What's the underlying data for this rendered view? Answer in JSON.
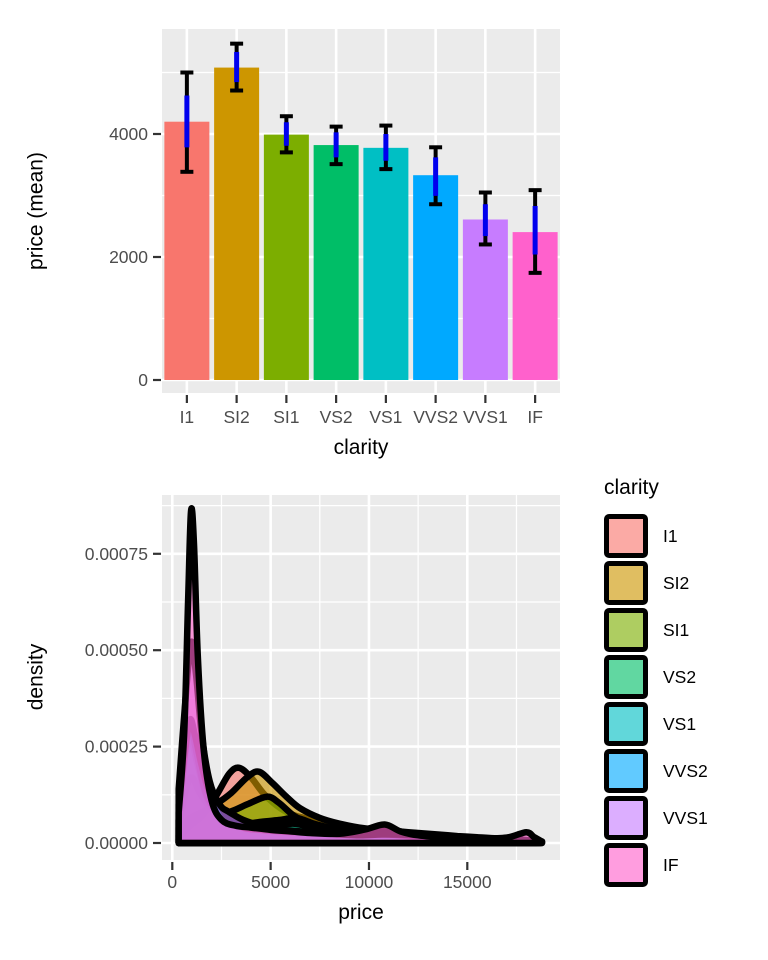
{
  "chart_data": [
    {
      "type": "bar",
      "ylabel": "price (mean)",
      "xlabel": "clarity",
      "categories": [
        "I1",
        "SI2",
        "SI1",
        "VS2",
        "VS1",
        "VVS2",
        "VVS1",
        "IF"
      ],
      "values": [
        4200,
        5080,
        3990,
        3820,
        3775,
        3330,
        2610,
        2405
      ],
      "bar_colors": [
        "#F8766D",
        "#CD9600",
        "#7CAE00",
        "#00BE67",
        "#00BFC4",
        "#00A9FF",
        "#C77CFF",
        "#FF61CC"
      ],
      "errorbars": {
        "outer_color": "#000000",
        "inner_color": "#0000EE",
        "outer": [
          [
            3385,
            5000
          ],
          [
            4707,
            5469
          ],
          [
            3701,
            4289
          ],
          [
            3510,
            4120
          ],
          [
            3429,
            4137
          ],
          [
            2858,
            3784
          ],
          [
            2204,
            3049
          ],
          [
            1742,
            3087
          ]
        ],
        "inner": [
          [
            3783,
            4626
          ],
          [
            4844,
            5334
          ],
          [
            3809,
            4191
          ],
          [
            3620,
            4027
          ],
          [
            3565,
            4000
          ],
          [
            2994,
            3620
          ],
          [
            2340,
            2858
          ],
          [
            2041,
            2830
          ]
        ]
      },
      "y_ticks": {
        "values": [
          0,
          2000,
          4000
        ],
        "labels": [
          "0",
          "2000",
          "4000"
        ]
      },
      "y_minor": [
        1000,
        3000,
        5000
      ],
      "ylim": [
        0,
        5920
      ],
      "panel_bg": "#EBEBEB",
      "grid_color": "#FFFFFF",
      "tick_color": "#333333",
      "tick_label_color": "#4D4D4D"
    },
    {
      "type": "area",
      "ylabel": "density",
      "xlabel": "price",
      "legend_title": "clarity",
      "x_ticks": {
        "values": [
          0,
          5000,
          10000,
          15000
        ],
        "labels": [
          "0",
          "5000",
          "10000",
          "15000"
        ]
      },
      "x_minor": [
        2500,
        7500,
        12500,
        17500
      ],
      "y_ticks": {
        "values": [
          0,
          0.00025,
          0.0005,
          0.00075
        ],
        "labels": [
          "0.00000",
          "0.00025",
          "0.00050",
          "0.00075"
        ]
      },
      "y_minor": [
        0.000125,
        0.000375,
        0.000625,
        0.000875
      ],
      "xlim": [
        -520,
        19720
      ],
      "ylim": [
        0,
        0.000902
      ],
      "panel_bg": "#EBEBEB",
      "grid_color": "#FFFFFF",
      "tick_color": "#333333",
      "tick_label_color": "#4D4D4D",
      "fill_opacity": 0.62,
      "outline_color": "#000000",
      "outline_width": 6.5,
      "series": [
        {
          "name": "I1",
          "color": "#F8766D",
          "points": [
            [
              326,
              1e-05
            ],
            [
              800,
              4e-05
            ],
            [
              1500,
              7e-05
            ],
            [
              2200,
              0.00012
            ],
            [
              2900,
              0.00018
            ],
            [
              3400,
              0.000195
            ],
            [
              4000,
              0.00017
            ],
            [
              4700,
              0.000125
            ],
            [
              5500,
              9e-05
            ],
            [
              6300,
              7e-05
            ],
            [
              7200,
              6e-05
            ],
            [
              8000,
              4.5e-05
            ],
            [
              9000,
              3e-05
            ],
            [
              10000,
              2.5e-05
            ],
            [
              11500,
              2e-05
            ],
            [
              13000,
              1.4e-05
            ],
            [
              14500,
              1e-05
            ],
            [
              16000,
              7e-06
            ],
            [
              17500,
              4e-06
            ],
            [
              18500,
              2e-06
            ]
          ]
        },
        {
          "name": "SI2",
          "color": "#CD9600",
          "points": [
            [
              326,
              2e-05
            ],
            [
              800,
              6e-05
            ],
            [
              1500,
              8e-05
            ],
            [
              2200,
              0.0001
            ],
            [
              3000,
              0.00013
            ],
            [
              3800,
              0.00017
            ],
            [
              4400,
              0.000185
            ],
            [
              5100,
              0.000155
            ],
            [
              5800,
              0.00012
            ],
            [
              6500,
              9e-05
            ],
            [
              7500,
              6.5e-05
            ],
            [
              8500,
              5e-05
            ],
            [
              9500,
              4e-05
            ],
            [
              10500,
              3.4e-05
            ],
            [
              11500,
              3e-05
            ],
            [
              12500,
              2.6e-05
            ],
            [
              13500,
              2.2e-05
            ],
            [
              14500,
              1.8e-05
            ],
            [
              15500,
              1.5e-05
            ],
            [
              16500,
              1.2e-05
            ],
            [
              17500,
              1e-05
            ],
            [
              18800,
              4e-06
            ]
          ]
        },
        {
          "name": "SI1",
          "color": "#7CAE00",
          "points": [
            [
              326,
              4e-05
            ],
            [
              700,
              0.00014
            ],
            [
              1000,
              0.00017
            ],
            [
              1400,
              0.00013
            ],
            [
              2000,
              9e-05
            ],
            [
              2800,
              8e-05
            ],
            [
              3800,
              0.0001
            ],
            [
              4800,
              0.00012
            ],
            [
              5400,
              0.000105
            ],
            [
              6200,
              7e-05
            ],
            [
              7000,
              5e-05
            ],
            [
              8000,
              3.8e-05
            ],
            [
              9000,
              2.8e-05
            ],
            [
              10500,
              2e-05
            ],
            [
              12000,
              1.5e-05
            ],
            [
              13500,
              1.1e-05
            ],
            [
              15000,
              8e-06
            ],
            [
              17000,
              5e-06
            ],
            [
              18500,
              2e-06
            ]
          ]
        },
        {
          "name": "VS2",
          "color": "#00BE67",
          "points": [
            [
              326,
              6e-05
            ],
            [
              700,
              0.00024
            ],
            [
              950,
              0.00027
            ],
            [
              1300,
              0.0002
            ],
            [
              1800,
              0.00011
            ],
            [
              2500,
              7e-05
            ],
            [
              3500,
              5e-05
            ],
            [
              4500,
              5.5e-05
            ],
            [
              5500,
              6e-05
            ],
            [
              6300,
              6.5e-05
            ],
            [
              7200,
              5e-05
            ],
            [
              8000,
              4e-05
            ],
            [
              9000,
              3e-05
            ],
            [
              10500,
              2.4e-05
            ],
            [
              12000,
              2e-05
            ],
            [
              13500,
              1.5e-05
            ],
            [
              15000,
              1e-05
            ],
            [
              17000,
              7e-06
            ],
            [
              18700,
              3e-06
            ]
          ]
        },
        {
          "name": "VS1",
          "color": "#00BFC4",
          "points": [
            [
              326,
              6e-05
            ],
            [
              700,
              0.00026
            ],
            [
              950,
              0.0003
            ],
            [
              1250,
              0.00023
            ],
            [
              1700,
              0.00013
            ],
            [
              2300,
              8e-05
            ],
            [
              3200,
              5e-05
            ],
            [
              4200,
              4e-05
            ],
            [
              5200,
              4.5e-05
            ],
            [
              6200,
              5e-05
            ],
            [
              7200,
              4e-05
            ],
            [
              8500,
              3.8e-05
            ],
            [
              9500,
              3.2e-05
            ],
            [
              11000,
              2.4e-05
            ],
            [
              12500,
              2e-05
            ],
            [
              14000,
              1.4e-05
            ],
            [
              16000,
              9e-06
            ],
            [
              18000,
              5e-06
            ],
            [
              18700,
              2e-06
            ]
          ]
        },
        {
          "name": "VVS2",
          "color": "#00A9FF",
          "points": [
            [
              326,
              0.0001
            ],
            [
              650,
              0.00024
            ],
            [
              900,
              0.00032
            ],
            [
              1150,
              0.00028
            ],
            [
              1500,
              0.0002
            ],
            [
              1900,
              0.00013
            ],
            [
              2400,
              0.0001
            ],
            [
              2900,
              6e-05
            ],
            [
              3600,
              4e-05
            ],
            [
              4500,
              3.4e-05
            ],
            [
              5500,
              3e-05
            ],
            [
              6500,
              2.8e-05
            ],
            [
              7500,
              3e-05
            ],
            [
              8800,
              3.8e-05
            ],
            [
              10000,
              3e-05
            ],
            [
              11500,
              2e-05
            ],
            [
              13000,
              1.4e-05
            ],
            [
              15000,
              9e-06
            ],
            [
              17000,
              5e-06
            ],
            [
              18400,
              2e-06
            ]
          ]
        },
        {
          "name": "VVS1",
          "color": "#C77CFF",
          "points": [
            [
              326,
              0.00014
            ],
            [
              650,
              0.00036
            ],
            [
              950,
              0.00052
            ],
            [
              1200,
              0.00044
            ],
            [
              1500,
              0.00028
            ],
            [
              1900,
              0.00016
            ],
            [
              2400,
              0.0001
            ],
            [
              2900,
              8e-05
            ],
            [
              3600,
              6e-05
            ],
            [
              4500,
              4.5e-05
            ],
            [
              5500,
              3.5e-05
            ],
            [
              6500,
              3e-05
            ],
            [
              8000,
              2.4e-05
            ],
            [
              9500,
              2e-05
            ],
            [
              10800,
              2.2e-05
            ],
            [
              12500,
              2e-05
            ],
            [
              14000,
              1.2e-05
            ],
            [
              16000,
              7e-06
            ],
            [
              18000,
              4e-06
            ],
            [
              18600,
              2e-06
            ]
          ]
        },
        {
          "name": "IF",
          "color": "#FF61CC",
          "points": [
            [
              326,
              8e-05
            ],
            [
              600,
              0.00028
            ],
            [
              800,
              0.00062
            ],
            [
              950,
              0.00086
            ],
            [
              1100,
              0.00078
            ],
            [
              1300,
              0.00048
            ],
            [
              1600,
              0.00024
            ],
            [
              2000,
              0.00011
            ],
            [
              2500,
              6e-05
            ],
            [
              3200,
              4.5e-05
            ],
            [
              4000,
              4e-05
            ],
            [
              5000,
              3.4e-05
            ],
            [
              6000,
              3e-05
            ],
            [
              7000,
              2.6e-05
            ],
            [
              8500,
              2.4e-05
            ],
            [
              9800,
              3.5e-05
            ],
            [
              10800,
              4.8e-05
            ],
            [
              11600,
              3e-05
            ],
            [
              12500,
              2e-05
            ],
            [
              14000,
              1.4e-05
            ],
            [
              15500,
              1.2e-05
            ],
            [
              17000,
              1.4e-05
            ],
            [
              18000,
              2.8e-05
            ],
            [
              18400,
              1.5e-05
            ],
            [
              18800,
              4e-06
            ]
          ]
        }
      ]
    }
  ]
}
